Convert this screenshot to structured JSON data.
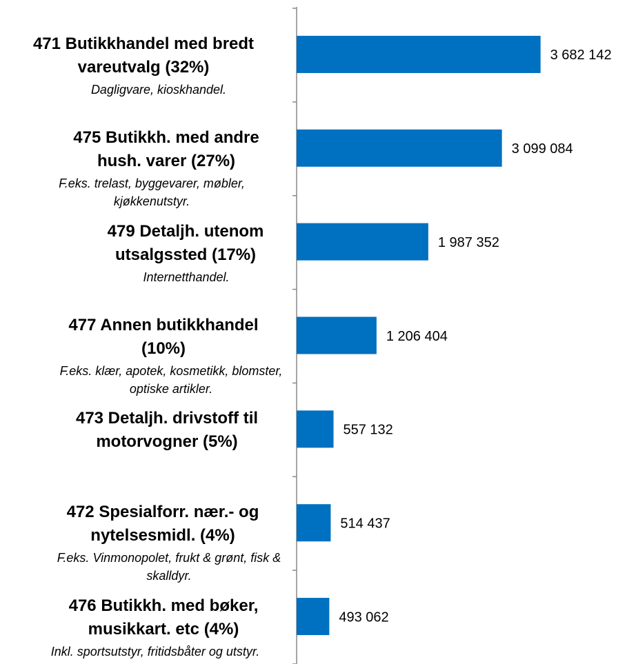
{
  "chart_data": {
    "type": "barh",
    "categories": [
      "471 Butikkhandel med bredt vareutvalg (32%)",
      "475 Butikkh. med andre hush. varer (27%)",
      "479 Detaljh. utenom utsalgssted (17%)",
      "477 Annen butikkhandel (10%)",
      "473 Detaljh. drivstoff til motorvogner (5%)",
      "472 Spesialforr. nær.- og nytelsesmidl. (4%)",
      "476 Butikkh. med bøker, musikkart. etc (4%)"
    ],
    "descriptions": [
      "Dagligvare, kioskhandel.",
      "F.eks. trelast, byggevarer, møbler, kjøkkenutstyr.",
      "Internetthandel.",
      "F.eks. klær, apotek, kosmetikk, blomster, optiske artikler.",
      null,
      "F.eks. Vinmonopolet, frukt & grønt, fisk & skalldyr.",
      "Inkl. sportsutstyr, fritidsbåter og utstyr."
    ],
    "values": [
      3682142,
      3099084,
      1987352,
      1206404,
      557132,
      514437,
      493062
    ],
    "value_labels": [
      "3 682 142",
      "3 099 084",
      "1 987 352",
      "1 206 404",
      "557 132",
      "514 437",
      "493 062"
    ],
    "color": "#0070c0",
    "xlim": [
      0,
      4800000
    ]
  }
}
